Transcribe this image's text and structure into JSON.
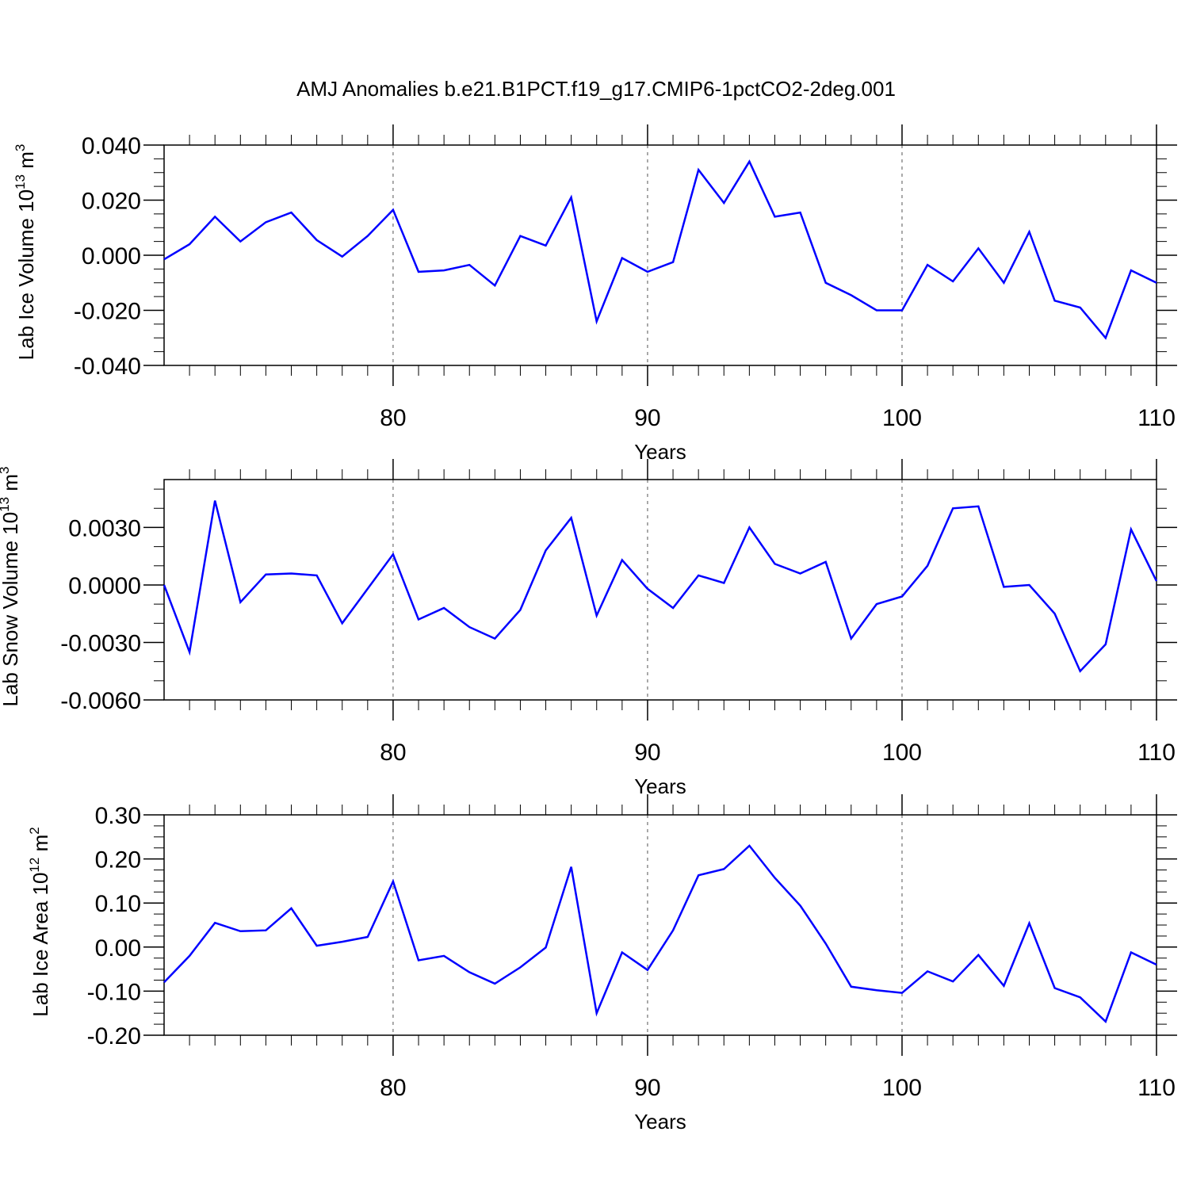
{
  "title": "AMJ Anomalies b.e21.B1PCT.f19_g17.CMIP6-1pctCO2-2deg.001",
  "line_color": "#0000ff",
  "chart_data": [
    {
      "type": "line",
      "ylabel": {
        "text": "Lab Ice Volume 10",
        "exp": "13",
        "unit": " m",
        "unit_exp": "3"
      },
      "xlabel": "Years",
      "xlim": [
        71,
        110
      ],
      "ylim": [
        -0.04,
        0.04
      ],
      "xticks": [
        80,
        90,
        100,
        110
      ],
      "xtick_labels": [
        "80",
        "90",
        "100",
        "110"
      ],
      "yticks": [
        -0.04,
        -0.02,
        0.0,
        0.02,
        0.04
      ],
      "ytick_labels": [
        "-0.040",
        "-0.020",
        "0.000",
        "0.020",
        "0.040"
      ],
      "y_minor_step": 0.005,
      "x": [
        71,
        72,
        73,
        74,
        75,
        76,
        77,
        78,
        79,
        80,
        81,
        82,
        83,
        84,
        85,
        86,
        87,
        88,
        89,
        90,
        91,
        92,
        93,
        94,
        95,
        96,
        97,
        98,
        99,
        100,
        101,
        102,
        103,
        104,
        105,
        106,
        107,
        108,
        109,
        110
      ],
      "series": [
        {
          "values": [
            -0.0015,
            0.004,
            0.014,
            0.005,
            0.012,
            0.0155,
            0.0055,
            -0.0005,
            0.007,
            0.0165,
            -0.006,
            -0.0055,
            -0.0035,
            -0.011,
            0.007,
            0.0035,
            0.021,
            -0.024,
            -0.001,
            -0.006,
            -0.0025,
            0.031,
            0.019,
            0.034,
            0.014,
            0.0155,
            -0.01,
            -0.0145,
            -0.02,
            -0.02,
            -0.0035,
            -0.0095,
            0.0025,
            -0.01,
            0.0085,
            -0.0165,
            -0.019,
            -0.03,
            -0.0055,
            -0.01
          ]
        }
      ]
    },
    {
      "type": "line",
      "ylabel": {
        "text": "Lab Snow Volume 10",
        "exp": "13",
        "unit": " m",
        "unit_exp": "3"
      },
      "xlabel": "Years",
      "xlim": [
        71,
        110
      ],
      "ylim": [
        -0.006,
        0.006
      ],
      "xticks": [
        80,
        90,
        100,
        110
      ],
      "xtick_labels": [
        "80",
        "90",
        "100",
        "110"
      ],
      "yticks": [
        -0.006,
        -0.003,
        0.0,
        0.003
      ],
      "ytick_labels": [
        "-0.0060",
        "-0.0030",
        "0.0000",
        "0.0030"
      ],
      "y_minor_step": 0.001,
      "x": [
        71,
        72,
        73,
        74,
        75,
        76,
        77,
        78,
        79,
        80,
        81,
        82,
        83,
        84,
        85,
        86,
        87,
        88,
        89,
        90,
        91,
        92,
        93,
        94,
        95,
        96,
        97,
        98,
        99,
        100,
        101,
        102,
        103,
        104,
        105,
        106,
        107,
        108,
        109,
        110
      ],
      "series": [
        {
          "values": [
            0.0,
            -0.0035,
            0.0044,
            -0.0009,
            0.00055,
            0.0006,
            0.0005,
            -0.002,
            -0.0002,
            0.0016,
            -0.0018,
            -0.0012,
            -0.0022,
            -0.0028,
            -0.0013,
            0.0018,
            0.0035,
            -0.0016,
            0.0013,
            -0.0002,
            -0.0012,
            0.0005,
            0.0001,
            0.003,
            0.0011,
            0.0006,
            0.0012,
            -0.0028,
            -0.001,
            -0.0006,
            0.001,
            0.004,
            0.0041,
            -0.0001,
            0.0,
            -0.0015,
            -0.0045,
            -0.0031,
            0.0029,
            0.0002
          ]
        }
      ]
    },
    {
      "type": "line",
      "ylabel": {
        "text": "Lab Ice Area 10",
        "exp": "12",
        "unit": " m",
        "unit_exp": "2"
      },
      "xlabel": "Years",
      "xlim": [
        71,
        110
      ],
      "ylim": [
        -0.2,
        0.3
      ],
      "xticks": [
        80,
        90,
        100,
        110
      ],
      "xtick_labels": [
        "80",
        "90",
        "100",
        "110"
      ],
      "yticks": [
        -0.2,
        -0.1,
        0.0,
        0.1,
        0.2,
        0.3
      ],
      "ytick_labels": [
        "-0.20",
        "-0.10",
        "0.00",
        "0.10",
        "0.20",
        "0.30"
      ],
      "y_minor_step": 0.025,
      "x": [
        71,
        72,
        73,
        74,
        75,
        76,
        77,
        78,
        79,
        80,
        81,
        82,
        83,
        84,
        85,
        86,
        87,
        88,
        89,
        90,
        91,
        92,
        93,
        94,
        95,
        96,
        97,
        98,
        99,
        100,
        101,
        102,
        103,
        104,
        105,
        106,
        107,
        108,
        109,
        110
      ],
      "series": [
        {
          "values": [
            -0.08,
            -0.02,
            0.055,
            0.036,
            0.038,
            0.088,
            0.003,
            0.012,
            0.023,
            0.149,
            -0.03,
            -0.02,
            -0.057,
            -0.083,
            -0.046,
            -0.001,
            0.182,
            -0.15,
            -0.012,
            -0.052,
            0.038,
            0.163,
            0.177,
            0.23,
            0.157,
            0.094,
            0.008,
            -0.09,
            -0.098,
            -0.104,
            -0.055,
            -0.078,
            -0.018,
            -0.088,
            0.054,
            -0.093,
            -0.114,
            -0.169,
            -0.012,
            -0.04
          ]
        }
      ]
    }
  ]
}
